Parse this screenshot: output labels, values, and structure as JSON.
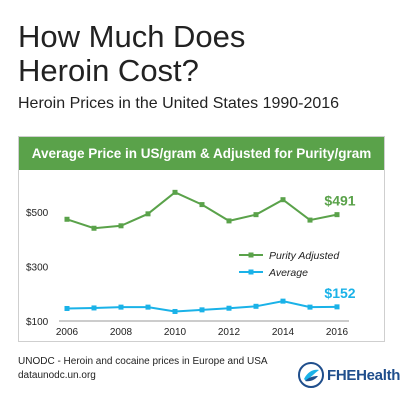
{
  "title": "How Much Does Heroin Cost?",
  "subtitle": "Heroin Prices in the United States 1990-2016",
  "chart_header": "Average Price in US/gram & Adjusted for Purity/gram",
  "source": {
    "line1": "UNODC - Heroin and cocaine prices in Europe and USA",
    "line2": "dataunodc.un.org"
  },
  "logo_text": "FHEHealth",
  "colors": {
    "header_bg": "#5aa24a",
    "purity": "#5aa24a",
    "average": "#1ab2e8",
    "logo": "#1f4e8c"
  },
  "chart_data": {
    "type": "line",
    "title": "Average Price in US/gram & Adjusted for Purity/gram",
    "xlabel": "",
    "ylabel": "",
    "x": [
      2006,
      2007,
      2008,
      2009,
      2010,
      2011,
      2012,
      2013,
      2014,
      2015,
      2016
    ],
    "xlim": [
      2006,
      2016
    ],
    "xticks": [
      "2006",
      "2008",
      "2010",
      "2012",
      "2014",
      "2016"
    ],
    "ylim": [
      100,
      600
    ],
    "yticks": [
      "$100",
      "$300",
      "$500"
    ],
    "grid": false,
    "legend": "right",
    "series": [
      {
        "name": "Purity Adjusted",
        "color": "#5aa24a",
        "values": [
          474,
          441,
          450,
          494,
          573,
          528,
          468,
          491,
          546,
          471,
          491
        ],
        "end_label": "$491"
      },
      {
        "name": "Average",
        "color": "#1ab2e8",
        "values": [
          146,
          148,
          151,
          151,
          135,
          141,
          147,
          154,
          173,
          151,
          152
        ],
        "end_label": "$152"
      }
    ]
  }
}
